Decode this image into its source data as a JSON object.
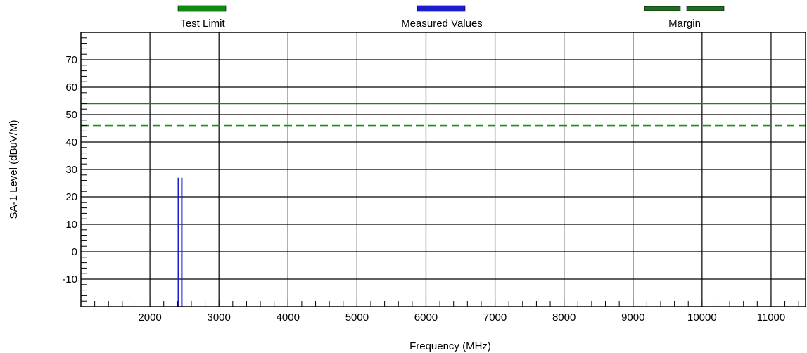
{
  "chart_data": {
    "type": "line",
    "title": "",
    "xlabel": "Frequency (MHz)",
    "ylabel": "SA-1 Level (dBuV/M)",
    "xlim": [
      1000,
      11500
    ],
    "ylim": [
      -20,
      80
    ],
    "x_ticks": [
      2000,
      3000,
      4000,
      5000,
      6000,
      7000,
      8000,
      9000,
      10000,
      11000
    ],
    "y_ticks": [
      -10,
      0,
      10,
      20,
      30,
      40,
      50,
      60,
      70
    ],
    "x_minor_step": 200,
    "y_minor_step": 2,
    "grid": true,
    "legend": {
      "placement": "top",
      "entries": [
        {
          "label": "Test Limit",
          "color": "#118a11",
          "style": "solid"
        },
        {
          "label": "Measured Values",
          "color": "#1c1cd0",
          "style": "solid"
        },
        {
          "label": "Margin",
          "color": "#1f6e1f",
          "style": "dashed"
        }
      ]
    },
    "series": [
      {
        "name": "Test Limit",
        "color": "#118a11",
        "dashed": false,
        "x": [
          1000,
          11500
        ],
        "y": [
          54,
          54
        ]
      },
      {
        "name": "Margin",
        "color": "#1f8a1f",
        "dashed": true,
        "x": [
          1000,
          11500
        ],
        "y": [
          46,
          46
        ]
      },
      {
        "name": "Measured Values",
        "color": "#1c1cd0",
        "type": "impulse",
        "x": [
          2412,
          2462
        ],
        "y": [
          27,
          27
        ]
      }
    ]
  }
}
